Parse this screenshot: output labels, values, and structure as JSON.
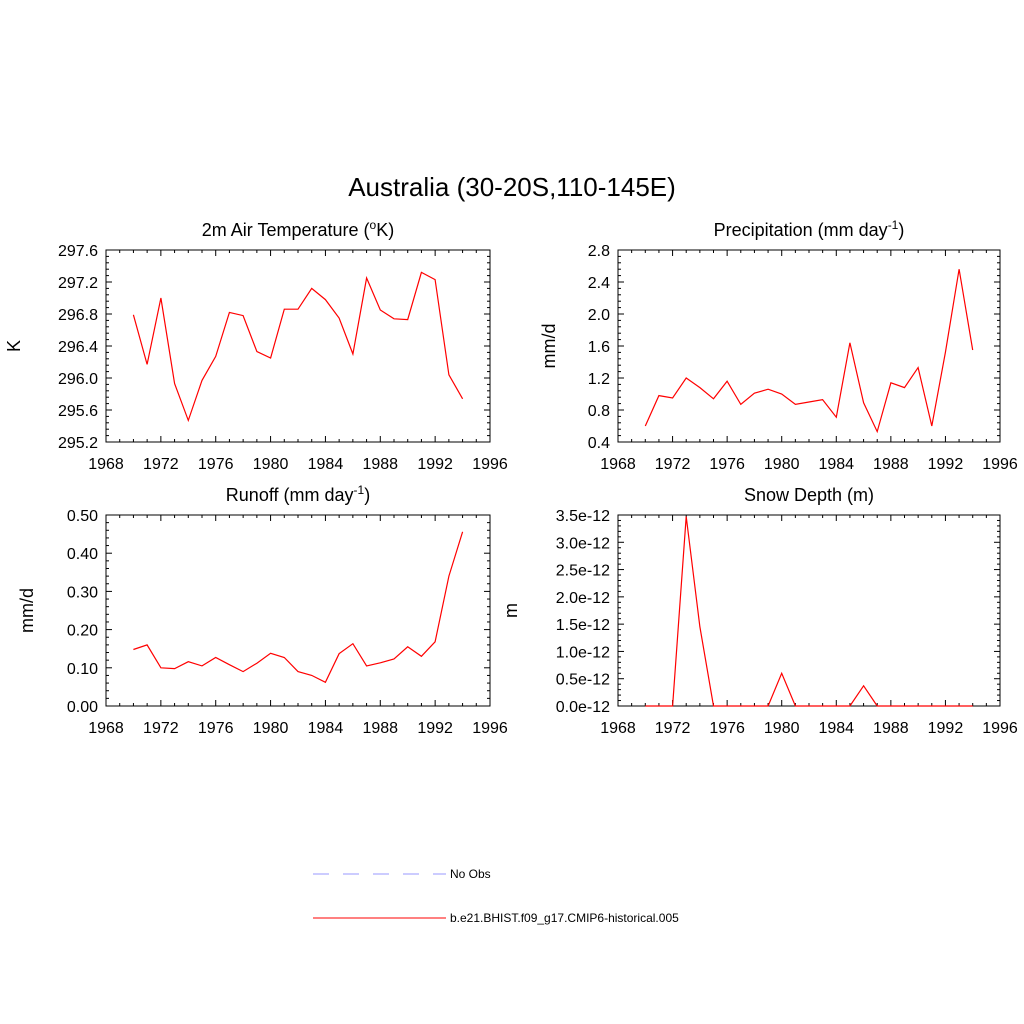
{
  "figure": {
    "title": "Australia (30-20S,110-145E)"
  },
  "legend": {
    "items": [
      {
        "label": "No Obs",
        "color": "#9999ff",
        "style": "dashed"
      },
      {
        "label": "b.e21.BHIST.f09_g17.CMIP6-historical.005",
        "color": "#ff0000",
        "style": "solid"
      }
    ]
  },
  "chart_data": [
    {
      "type": "line",
      "title": "2m Air Temperature (oK)",
      "title_parts": {
        "pre": "2m Air Temperature (",
        "sup": "o",
        "post": "K)"
      },
      "ylabel": "K",
      "xlim": [
        1968,
        1996
      ],
      "ylim": [
        295.2,
        297.6
      ],
      "xticks": [
        1968,
        1972,
        1976,
        1980,
        1984,
        1988,
        1992,
        1996
      ],
      "yticks": [
        "295.2",
        "295.6",
        "296.0",
        "296.4",
        "296.8",
        "297.2",
        "297.6"
      ],
      "series": [
        {
          "color": "#ff0000",
          "x": [
            1970,
            1971,
            1972,
            1973,
            1974,
            1975,
            1976,
            1977,
            1978,
            1979,
            1980,
            1981,
            1982,
            1983,
            1984,
            1985,
            1986,
            1987,
            1988,
            1989,
            1990,
            1991,
            1992,
            1993,
            1994
          ],
          "y": [
            296.79,
            296.17,
            297.0,
            295.93,
            295.47,
            295.97,
            296.27,
            296.82,
            296.78,
            296.33,
            296.25,
            296.86,
            296.86,
            297.12,
            296.98,
            296.75,
            296.3,
            297.25,
            296.85,
            296.74,
            296.73,
            297.32,
            297.23,
            296.04,
            295.74
          ]
        }
      ]
    },
    {
      "type": "line",
      "title": "Precipitation (mm day-1)",
      "title_parts": {
        "pre": "Precipitation (mm day",
        "sup": "-1",
        "post": ")"
      },
      "ylabel": "mm/d",
      "xlim": [
        1968,
        1996
      ],
      "ylim": [
        0.4,
        2.8
      ],
      "xticks": [
        1968,
        1972,
        1976,
        1980,
        1984,
        1988,
        1992,
        1996
      ],
      "yticks": [
        "0.4",
        "0.8",
        "1.2",
        "1.6",
        "2.0",
        "2.4",
        "2.8"
      ],
      "series": [
        {
          "color": "#ff0000",
          "x": [
            1970,
            1971,
            1972,
            1973,
            1974,
            1975,
            1976,
            1977,
            1978,
            1979,
            1980,
            1981,
            1982,
            1983,
            1984,
            1985,
            1986,
            1987,
            1988,
            1989,
            1990,
            1991,
            1992,
            1993,
            1994
          ],
          "y": [
            0.6,
            0.98,
            0.95,
            1.2,
            1.08,
            0.94,
            1.16,
            0.87,
            1.01,
            1.06,
            1.0,
            0.87,
            0.9,
            0.93,
            0.71,
            1.64,
            0.89,
            0.53,
            1.14,
            1.08,
            1.33,
            0.6,
            1.52,
            2.56,
            1.55
          ]
        }
      ]
    },
    {
      "type": "line",
      "title": "Runoff (mm day-1)",
      "title_parts": {
        "pre": "Runoff (mm day",
        "sup": "-1",
        "post": ")"
      },
      "ylabel": "mm/d",
      "xlim": [
        1968,
        1996
      ],
      "ylim": [
        0.0,
        0.5
      ],
      "xticks": [
        1968,
        1972,
        1976,
        1980,
        1984,
        1988,
        1992,
        1996
      ],
      "yticks": [
        "0.00",
        "0.10",
        "0.20",
        "0.30",
        "0.40",
        "0.50"
      ],
      "series": [
        {
          "color": "#ff0000",
          "x": [
            1970,
            1971,
            1972,
            1973,
            1974,
            1975,
            1976,
            1977,
            1978,
            1979,
            1980,
            1981,
            1982,
            1983,
            1984,
            1985,
            1986,
            1987,
            1988,
            1989,
            1990,
            1991,
            1992,
            1993,
            1994
          ],
          "y": [
            0.148,
            0.16,
            0.1,
            0.098,
            0.116,
            0.105,
            0.127,
            0.108,
            0.09,
            0.112,
            0.138,
            0.127,
            0.09,
            0.08,
            0.062,
            0.137,
            0.163,
            0.105,
            0.113,
            0.123,
            0.155,
            0.13,
            0.168,
            0.34,
            0.456
          ]
        }
      ]
    },
    {
      "type": "line",
      "title": "Snow Depth (m)",
      "title_parts": {
        "pre": "Snow Depth (m)",
        "sup": "",
        "post": ""
      },
      "ylabel": "m",
      "xlim": [
        1968,
        1996
      ],
      "ylim": [
        0.0,
        3.5e-12
      ],
      "xticks": [
        1968,
        1972,
        1976,
        1980,
        1984,
        1988,
        1992,
        1996
      ],
      "yticks": [
        "0.0e-12",
        "0.5e-12",
        "1.0e-12",
        "1.5e-12",
        "2.0e-12",
        "2.5e-12",
        "3.0e-12",
        "3.5e-12"
      ],
      "series": [
        {
          "color": "#ff0000",
          "x": [
            1970,
            1971,
            1972,
            1973,
            1974,
            1975,
            1976,
            1977,
            1978,
            1979,
            1980,
            1981,
            1982,
            1983,
            1984,
            1985,
            1986,
            1987,
            1988,
            1989,
            1990,
            1991,
            1992,
            1993,
            1994
          ],
          "y": [
            0,
            0,
            0,
            3.47e-12,
            1.45e-12,
            0,
            0,
            0,
            0,
            0,
            6e-13,
            0,
            0,
            0,
            0,
            0,
            3.7e-13,
            0,
            0,
            0,
            0,
            0,
            0,
            0,
            0
          ]
        }
      ]
    }
  ]
}
